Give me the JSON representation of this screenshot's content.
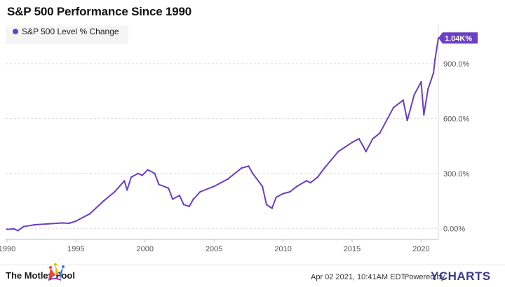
{
  "chart_data": {
    "type": "line",
    "title": "S&P 500 Performance Since 1990",
    "legend": {
      "placement": "top-left",
      "label": "S&P 500 Level % Change"
    },
    "y_ticks": [
      "0.00%",
      "300.0%",
      "600.0%",
      "900.0%"
    ],
    "y_tick_values": [
      0,
      300,
      600,
      900
    ],
    "x_ticks": [
      "1990",
      "1995",
      "2000",
      "2005",
      "2010",
      "2015",
      "2020"
    ],
    "x_tick_values": [
      1990,
      1995,
      2000,
      2005,
      2010,
      2015,
      2020
    ],
    "xlim": [
      1989.9,
      2021.25
    ],
    "ylim": [
      -60,
      1110
    ],
    "grid": "horizontal dashed",
    "end_label": "1.04K%",
    "series": [
      {
        "name": "S&P 500 Level % Change",
        "color": "#6a3fc4",
        "x": [
          1990.0,
          1990.5,
          1990.8,
          1991.2,
          1992.0,
          1993.0,
          1994.0,
          1994.5,
          1995.0,
          1996.0,
          1997.0,
          1997.8,
          1998.5,
          1998.7,
          1999.0,
          1999.5,
          1999.8,
          2000.2,
          2000.7,
          2001.0,
          2001.7,
          2002.0,
          2002.5,
          2002.8,
          2003.2,
          2003.5,
          2004.0,
          2005.0,
          2006.0,
          2007.0,
          2007.5,
          2007.8,
          2008.5,
          2008.8,
          2009.2,
          2009.5,
          2010.0,
          2010.5,
          2011.0,
          2011.7,
          2012.0,
          2012.5,
          2013.0,
          2014.0,
          2015.0,
          2015.5,
          2015.8,
          2016.0,
          2016.5,
          2017.0,
          2018.0,
          2018.7,
          2019.0,
          2019.5,
          2020.0,
          2020.2,
          2020.5,
          2020.9,
          2021.0,
          2021.25
        ],
        "y": [
          -5,
          -3,
          -12,
          10,
          20,
          25,
          30,
          28,
          40,
          80,
          150,
          200,
          260,
          210,
          280,
          300,
          290,
          320,
          300,
          240,
          220,
          160,
          180,
          130,
          120,
          160,
          200,
          230,
          270,
          330,
          340,
          300,
          230,
          130,
          110,
          170,
          190,
          200,
          230,
          260,
          250,
          280,
          330,
          420,
          470,
          490,
          450,
          420,
          490,
          520,
          660,
          700,
          590,
          730,
          800,
          620,
          760,
          850,
          920,
          1040
        ]
      }
    ]
  },
  "footer": {
    "brand": "The Motley Fool",
    "timestamp": "Apr 02 2021, 10:41AM EDT.",
    "powered_by": "Powered by",
    "provider": "YCHARTS"
  }
}
